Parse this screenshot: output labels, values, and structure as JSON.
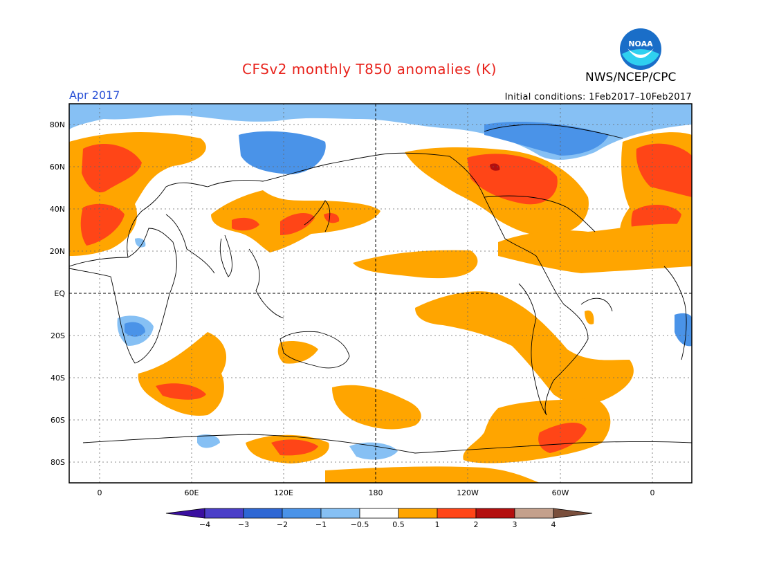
{
  "title": "CFSv2 monthly T850 anomalies (K)",
  "valid_month": "Apr 2017",
  "initial_conditions": "Initial conditions: 1Feb2017–10Feb2017",
  "organization": "NWS/NCEP/CPC",
  "logo_text": "NOAA",
  "lat_labels": [
    "80N",
    "60N",
    "40N",
    "20N",
    "EQ",
    "20S",
    "40S",
    "60S",
    "80S"
  ],
  "lon_labels": [
    "0",
    "60E",
    "120E",
    "180",
    "120W",
    "60W",
    "0"
  ],
  "colorbar": {
    "labels": [
      "-4",
      "-3",
      "-2",
      "-1",
      "-0.5",
      "0.5",
      "1",
      "2",
      "3",
      "4"
    ],
    "colors": [
      "#3a0fa0",
      "#4a3ec8",
      "#2e67d4",
      "#4a93e8",
      "#86c0f4",
      "#ffffff",
      "#ffa500",
      "#ff4517",
      "#b30f0f",
      "#c4a08c",
      "#7a4f3c"
    ]
  },
  "colors": {
    "title": "#e8231c",
    "month": "#2b52d6"
  }
}
